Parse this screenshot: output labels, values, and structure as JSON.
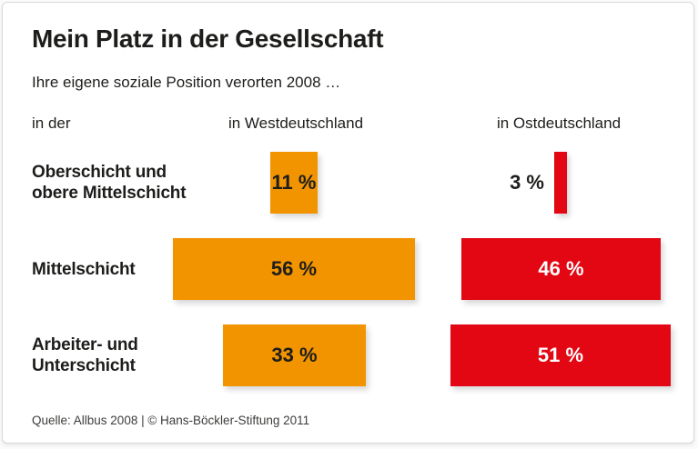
{
  "header": {
    "title": "Mein Platz in der Gesellschaft",
    "subtitle": "Ihre eigene soziale Position verorten 2008 …"
  },
  "columns": {
    "left_label": "in der",
    "west_label": "in Westdeutschland",
    "east_label": "in Ostdeutschland"
  },
  "source_note": "Quelle: Allbus 2008 | © Hans-Böckler-Stiftung 2011",
  "colors": {
    "west_bar": "#F29400",
    "east_bar": "#E30613",
    "text_dark": "#1D1D1B",
    "bar_text_on_west": "#1D1D1B",
    "bar_text_on_east": "#FFFFFF"
  },
  "chart_data": {
    "type": "bar",
    "orientation": "horizontal-centered",
    "title": "Mein Platz in der Gesellschaft",
    "subtitle": "Ihre eigene soziale Position verorten 2008 …",
    "unit": "%",
    "categories": [
      "Oberschicht und obere Mittelschicht",
      "Mittelschicht",
      "Arbeiter- und Unterschicht"
    ],
    "category_lines": [
      [
        "Oberschicht und",
        "obere Mittelschicht"
      ],
      [
        "Mittelschicht"
      ],
      [
        "Arbeiter- und",
        "Unterschicht"
      ]
    ],
    "series": [
      {
        "name": "in Westdeutschland",
        "color": "#F29400",
        "values": [
          11,
          56,
          33
        ]
      },
      {
        "name": "in Ostdeutschland",
        "color": "#E30613",
        "values": [
          3,
          46,
          51
        ]
      }
    ],
    "value_labels": [
      [
        "11 %",
        "3 %"
      ],
      [
        "56 %",
        "46 %"
      ],
      [
        "33 %",
        "51 %"
      ]
    ],
    "legend": "column headers above bars",
    "grid": false,
    "axes": false
  }
}
